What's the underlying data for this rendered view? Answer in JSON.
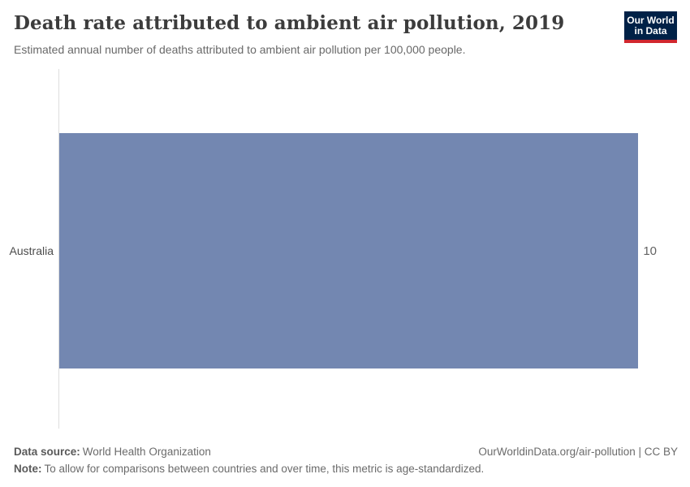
{
  "header": {
    "title": "Death rate attributed to ambient air pollution, 2019",
    "subtitle": "Estimated annual number of deaths attributed to ambient air pollution per 100,000 people.",
    "logo": {
      "line1": "Our World",
      "line2": "in Data"
    }
  },
  "chart_data": {
    "type": "bar",
    "orientation": "horizontal",
    "title": "Death rate attributed to ambient air pollution, 2019",
    "categories": [
      "Australia"
    ],
    "values": [
      10
    ],
    "value_labels": [
      "10"
    ],
    "xlabel": "",
    "ylabel": "",
    "xlim": [
      0,
      10
    ],
    "grid": false,
    "legend": "none",
    "bar_color": "#7387b1",
    "axis_line_color": "#dedede"
  },
  "footer": {
    "data_source_label": "Data source:",
    "data_source_value": "World Health Organization",
    "note_label": "Note:",
    "note_value": "To allow for comparisons between countries and over time, this metric is age-standardized.",
    "license_link": "OurWorldinData.org/air-pollution | CC BY"
  },
  "colors": {
    "bar": "#7387b1",
    "logo_background": "#002147",
    "logo_stripe": "#d1272e",
    "title_text": "#3c3c3c",
    "subtitle_text": "#696969",
    "axis_line": "#dedede"
  }
}
